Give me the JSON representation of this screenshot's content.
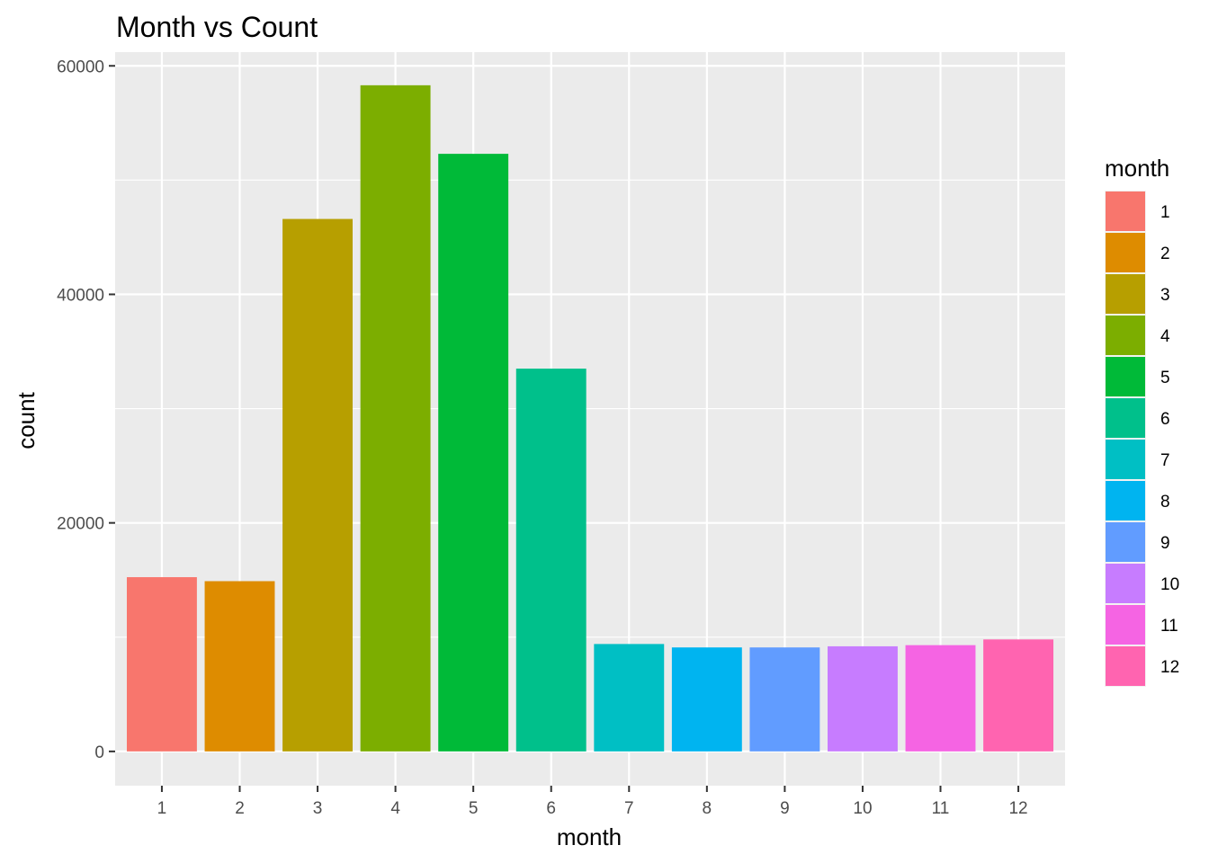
{
  "chart_data": {
    "type": "bar",
    "title": "Month vs Count",
    "xlabel": "month",
    "ylabel": "count",
    "categories": [
      "1",
      "2",
      "3",
      "4",
      "5",
      "6",
      "7",
      "8",
      "9",
      "10",
      "11",
      "12"
    ],
    "values": [
      15250,
      14900,
      46600,
      58300,
      52300,
      33500,
      9400,
      9100,
      9100,
      9200,
      9300,
      9800
    ],
    "colors": [
      "#F8766D",
      "#DE8C00",
      "#B79F00",
      "#7CAE00",
      "#00BA38",
      "#00C08B",
      "#00BFC4",
      "#00B4F0",
      "#619CFF",
      "#C77CFF",
      "#F564E3",
      "#FF64B0"
    ],
    "ylim": [
      -3000,
      61200
    ],
    "y_ticks": [
      0,
      20000,
      40000,
      60000
    ],
    "y_tick_labels": [
      "0",
      "20000",
      "40000",
      "60000"
    ],
    "y_minor_ticks": [
      10000,
      30000,
      50000
    ],
    "grid": true,
    "panel_background": "#EBEBEB",
    "legend": {
      "title": "month",
      "position": "right",
      "labels": [
        "1",
        "2",
        "3",
        "4",
        "5",
        "6",
        "7",
        "8",
        "9",
        "10",
        "11",
        "12"
      ]
    }
  }
}
